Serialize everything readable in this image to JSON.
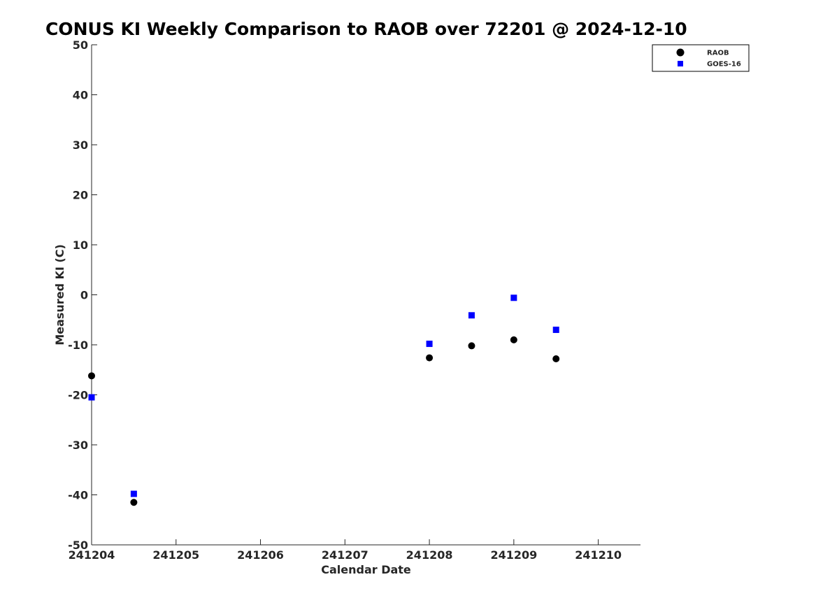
{
  "chart_data": {
    "type": "scatter",
    "title": "CONUS KI Weekly Comparison to RAOB over 72201 @ 2024-12-10",
    "xlabel": "Calendar Date",
    "ylabel": "Measured KI (C)",
    "xlim": [
      "2024-12-04",
      "2024-12-10 12:00"
    ],
    "ylim": [
      -50,
      50
    ],
    "x_ticks": [
      "241204",
      "241205",
      "241206",
      "241207",
      "241208",
      "241209",
      "241210"
    ],
    "y_ticks": [
      "-50",
      "-40",
      "-30",
      "-20",
      "-10",
      "0",
      "10",
      "20",
      "30",
      "40",
      "50"
    ],
    "grid": false,
    "legend_position": "top-right",
    "series": [
      {
        "name": "RAOB",
        "marker": "circle",
        "color": "#000000",
        "x": [
          "2024-12-04 00:00",
          "2024-12-04 12:00",
          "2024-12-08 00:00",
          "2024-12-08 12:00",
          "2024-12-09 00:00",
          "2024-12-09 12:00"
        ],
        "y": [
          -16.2,
          -41.5,
          -12.6,
          -10.2,
          -9.0,
          -12.8
        ]
      },
      {
        "name": "GOES-16",
        "marker": "square",
        "color": "#0000ff",
        "x": [
          "2024-12-04 00:00",
          "2024-12-04 12:00",
          "2024-12-08 00:00",
          "2024-12-08 12:00",
          "2024-12-09 00:00",
          "2024-12-09 12:00"
        ],
        "y": [
          -20.5,
          -39.8,
          -9.8,
          -4.1,
          -0.6,
          -7.0
        ]
      }
    ]
  }
}
